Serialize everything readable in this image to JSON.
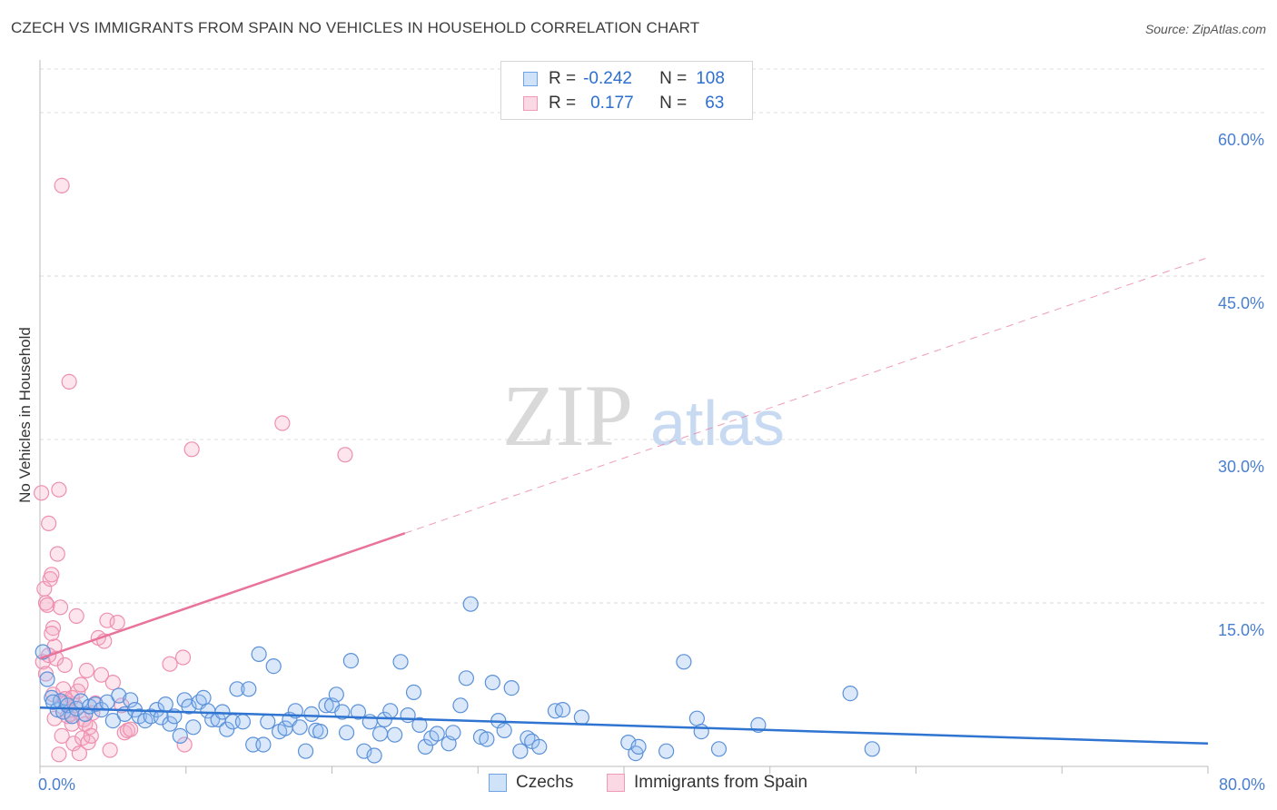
{
  "header": {
    "title": "CZECH VS IMMIGRANTS FROM SPAIN NO VEHICLES IN HOUSEHOLD CORRELATION CHART",
    "source": "Source: ZipAtlas.com"
  },
  "legend": {
    "rows": [
      {
        "r_label": "R =",
        "r_value": "-0.242",
        "n_label": "N =",
        "n_value": "108",
        "color": "#6fa3e8"
      },
      {
        "r_label": "R =",
        "r_value": "0.177",
        "n_label": "N =",
        "n_value": "63",
        "color": "#f09ab5"
      }
    ]
  },
  "bottom_legend": [
    {
      "label": "Czechs",
      "color": "#6fa3e8"
    },
    {
      "label": "Immigrants from Spain",
      "color": "#f09ab5"
    }
  ],
  "watermark": {
    "zip": "ZIP",
    "atlas": "atlas"
  },
  "colors": {
    "blue_point_fill": "rgba(150,190,240,0.35)",
    "blue_point_stroke": "#5b91d9",
    "pink_point_fill": "rgba(245,170,195,0.30)",
    "pink_point_stroke": "#ee8fb0",
    "blue_line": "#2f74d0",
    "pink_line": "#e8739b",
    "grid": "#dcdcdc",
    "tick_text": "#4a7fd0"
  },
  "chart_data": {
    "type": "scatter",
    "title": "CZECH VS IMMIGRANTS FROM SPAIN NO VEHICLES IN HOUSEHOLD CORRELATION CHART",
    "xlabel": "",
    "ylabel": "No Vehicles in Household",
    "xlim": [
      0,
      80
    ],
    "ylim": [
      0,
      64
    ],
    "x_tick_labels": [
      "0.0%",
      "80.0%"
    ],
    "y_ticks": [
      15,
      30,
      45,
      60
    ],
    "y_tick_labels": [
      "15.0%",
      "30.0%",
      "45.0%",
      "60.0%"
    ],
    "grid": true,
    "legend_position": "top-center",
    "series": [
      {
        "name": "Czechs",
        "r": -0.242,
        "n": 108,
        "trend": {
          "x": [
            0,
            80
          ],
          "y": [
            5.4,
            2.1
          ]
        },
        "points": [
          [
            0.2,
            10.5
          ],
          [
            0.5,
            8.0
          ],
          [
            0.8,
            6.3
          ],
          [
            1.2,
            5.2
          ],
          [
            1.4,
            6.0
          ],
          [
            1.6,
            5.0
          ],
          [
            1.9,
            5.6
          ],
          [
            2.2,
            4.6
          ],
          [
            2.5,
            5.3
          ],
          [
            2.8,
            6.0
          ],
          [
            3.1,
            4.8
          ],
          [
            3.4,
            5.5
          ],
          [
            3.8,
            5.7
          ],
          [
            4.2,
            5.2
          ],
          [
            4.6,
            5.9
          ],
          [
            5.0,
            4.2
          ],
          [
            5.4,
            6.5
          ],
          [
            5.8,
            4.8
          ],
          [
            6.2,
            6.1
          ],
          [
            6.5,
            5.2
          ],
          [
            6.8,
            4.6
          ],
          [
            7.2,
            4.2
          ],
          [
            7.6,
            4.6
          ],
          [
            8.0,
            5.2
          ],
          [
            8.3,
            4.5
          ],
          [
            8.6,
            5.7
          ],
          [
            8.9,
            3.9
          ],
          [
            9.2,
            4.6
          ],
          [
            9.6,
            2.8
          ],
          [
            9.9,
            6.1
          ],
          [
            10.2,
            5.5
          ],
          [
            10.5,
            3.6
          ],
          [
            10.9,
            5.9
          ],
          [
            11.2,
            6.3
          ],
          [
            11.5,
            5.1
          ],
          [
            11.8,
            4.3
          ],
          [
            12.2,
            4.3
          ],
          [
            12.5,
            5.0
          ],
          [
            12.8,
            3.4
          ],
          [
            13.2,
            4.1
          ],
          [
            13.5,
            7.1
          ],
          [
            13.9,
            4.1
          ],
          [
            14.3,
            7.1
          ],
          [
            14.6,
            2.0
          ],
          [
            15.0,
            10.3
          ],
          [
            15.3,
            2.0
          ],
          [
            15.6,
            4.1
          ],
          [
            16.0,
            9.2
          ],
          [
            16.4,
            3.2
          ],
          [
            16.8,
            3.5
          ],
          [
            17.1,
            4.3
          ],
          [
            17.5,
            5.1
          ],
          [
            17.8,
            3.6
          ],
          [
            18.2,
            1.4
          ],
          [
            18.6,
            4.8
          ],
          [
            18.9,
            3.3
          ],
          [
            19.2,
            3.2
          ],
          [
            19.6,
            5.6
          ],
          [
            20.0,
            5.6
          ],
          [
            20.3,
            6.6
          ],
          [
            20.7,
            5.0
          ],
          [
            21.0,
            3.1
          ],
          [
            21.3,
            9.7
          ],
          [
            21.8,
            5.0
          ],
          [
            22.2,
            1.4
          ],
          [
            22.6,
            4.1
          ],
          [
            22.9,
            1.0
          ],
          [
            23.3,
            3.0
          ],
          [
            23.6,
            4.3
          ],
          [
            24.0,
            5.1
          ],
          [
            24.3,
            2.9
          ],
          [
            24.7,
            9.6
          ],
          [
            25.2,
            4.7
          ],
          [
            25.6,
            6.8
          ],
          [
            26.0,
            3.8
          ],
          [
            26.4,
            1.8
          ],
          [
            26.8,
            2.6
          ],
          [
            27.2,
            3.0
          ],
          [
            28.0,
            2.1
          ],
          [
            28.3,
            3.1
          ],
          [
            28.8,
            5.6
          ],
          [
            29.2,
            8.1
          ],
          [
            29.5,
            14.9
          ],
          [
            30.2,
            2.7
          ],
          [
            30.6,
            2.5
          ],
          [
            31.0,
            7.7
          ],
          [
            31.4,
            4.2
          ],
          [
            31.8,
            3.3
          ],
          [
            32.3,
            7.2
          ],
          [
            32.9,
            1.4
          ],
          [
            33.4,
            2.6
          ],
          [
            33.7,
            2.3
          ],
          [
            34.2,
            1.8
          ],
          [
            35.3,
            5.1
          ],
          [
            35.8,
            5.2
          ],
          [
            37.1,
            4.5
          ],
          [
            40.3,
            2.2
          ],
          [
            40.8,
            1.2
          ],
          [
            41.0,
            1.8
          ],
          [
            42.9,
            1.4
          ],
          [
            44.1,
            9.6
          ],
          [
            45.0,
            4.4
          ],
          [
            45.3,
            3.2
          ],
          [
            46.5,
            1.6
          ],
          [
            49.2,
            3.8
          ],
          [
            55.5,
            6.7
          ],
          [
            57.0,
            1.6
          ],
          [
            0.9,
            5.9
          ]
        ]
      },
      {
        "name": "Immigrants from Spain",
        "r": 0.177,
        "n": 63,
        "trend": {
          "x": [
            0,
            25
          ],
          "y": [
            9.9,
            21.4
          ]
        },
        "trend_dashed": {
          "x": [
            25,
            80
          ],
          "y": [
            21.4,
            46.7
          ]
        },
        "points": [
          [
            0.1,
            25.1
          ],
          [
            0.3,
            16.3
          ],
          [
            0.4,
            15.0
          ],
          [
            0.5,
            14.8
          ],
          [
            0.6,
            22.3
          ],
          [
            0.7,
            17.2
          ],
          [
            0.8,
            17.6
          ],
          [
            0.9,
            12.7
          ],
          [
            1.0,
            11.0
          ],
          [
            1.1,
            9.9
          ],
          [
            1.2,
            19.5
          ],
          [
            1.3,
            25.4
          ],
          [
            1.4,
            14.6
          ],
          [
            1.5,
            53.3
          ],
          [
            1.6,
            7.1
          ],
          [
            1.7,
            6.2
          ],
          [
            1.8,
            5.8
          ],
          [
            1.9,
            4.6
          ],
          [
            2.0,
            35.3
          ],
          [
            2.1,
            4.8
          ],
          [
            2.2,
            3.9
          ],
          [
            2.3,
            2.1
          ],
          [
            2.4,
            5.6
          ],
          [
            2.5,
            13.8
          ],
          [
            2.6,
            6.9
          ],
          [
            2.7,
            1.2
          ],
          [
            2.8,
            7.5
          ],
          [
            2.9,
            2.6
          ],
          [
            3.0,
            4.3
          ],
          [
            3.1,
            3.9
          ],
          [
            3.2,
            8.8
          ],
          [
            3.3,
            2.2
          ],
          [
            3.4,
            3.6
          ],
          [
            3.5,
            2.8
          ],
          [
            3.6,
            4.9
          ],
          [
            3.8,
            5.8
          ],
          [
            4.0,
            11.8
          ],
          [
            4.2,
            8.4
          ],
          [
            4.4,
            11.5
          ],
          [
            4.6,
            13.4
          ],
          [
            4.8,
            1.5
          ],
          [
            5.0,
            7.7
          ],
          [
            5.3,
            13.2
          ],
          [
            5.6,
            5.6
          ],
          [
            5.8,
            3.1
          ],
          [
            6.0,
            3.3
          ],
          [
            6.2,
            3.4
          ],
          [
            8.9,
            9.4
          ],
          [
            9.8,
            10.0
          ],
          [
            9.9,
            2.0
          ],
          [
            10.4,
            29.1
          ],
          [
            16.6,
            31.5
          ],
          [
            20.9,
            28.6
          ],
          [
            0.2,
            9.6
          ],
          [
            0.4,
            8.5
          ],
          [
            0.6,
            10.2
          ],
          [
            0.8,
            12.2
          ],
          [
            1.0,
            4.4
          ],
          [
            1.3,
            1.1
          ],
          [
            1.5,
            2.8
          ],
          [
            1.7,
            9.3
          ],
          [
            0.9,
            6.6
          ],
          [
            2.2,
            6.3
          ]
        ]
      }
    ]
  }
}
